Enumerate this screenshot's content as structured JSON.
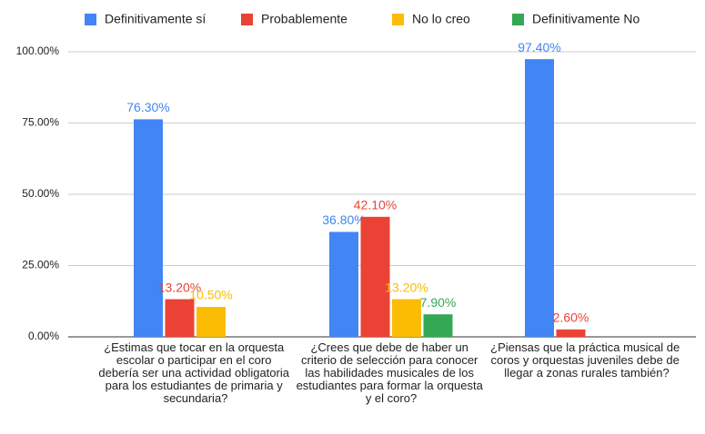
{
  "chart_data": {
    "type": "bar",
    "categories": [
      "¿Estimas  que tocar en la orquesta escolar o participar en el coro debería ser una actividad obligatoria para los estudiantes de primaria y secundaria?",
      "¿Crees que debe de haber un criterio de selección para conocer las habilidades musicales de los estudiantes para formar la orquesta y el coro?",
      "¿Piensas que la práctica musical de coros y orquestas juveniles debe de llegar a zonas rurales también?"
    ],
    "series": [
      {
        "name": "Definitivamente sí",
        "color": "#4285f4",
        "values": [
          76.3,
          36.8,
          97.4
        ],
        "value_labels": [
          "76.30%",
          "36.80%",
          "97.40%"
        ]
      },
      {
        "name": "Probablemente",
        "color": "#ea4335",
        "values": [
          13.2,
          42.1,
          2.6
        ],
        "value_labels": [
          "13.20%",
          "42.10%",
          "2.60%"
        ]
      },
      {
        "name": "No lo creo",
        "color": "#fbbc04",
        "values": [
          10.5,
          13.2,
          null
        ],
        "value_labels": [
          "10.50%",
          "13.20%",
          null
        ]
      },
      {
        "name": "Definitivamente No",
        "color": "#34a853",
        "values": [
          null,
          7.9,
          null
        ],
        "value_labels": [
          null,
          "7.90%",
          null
        ]
      }
    ],
    "ylim": [
      0,
      100
    ],
    "yticks": [
      {
        "value": 0,
        "label": "0.00%"
      },
      {
        "value": 25,
        "label": "25.00%"
      },
      {
        "value": 50,
        "label": "50.00%"
      },
      {
        "value": 75,
        "label": "75.00%"
      },
      {
        "value": 100,
        "label": "100.00%"
      }
    ],
    "grid": true,
    "legend": "top"
  }
}
